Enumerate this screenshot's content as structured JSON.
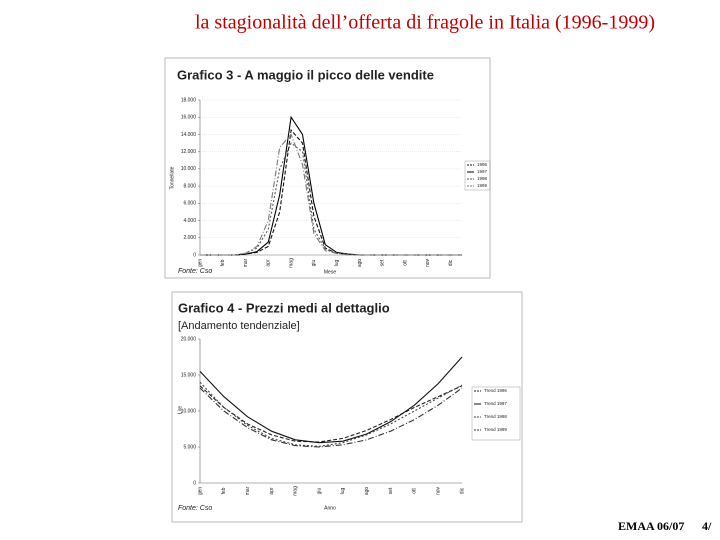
{
  "slide": {
    "title": "la stagionalità dell’offerta di fragole in Italia (1996-1999)",
    "footer": "EMAA 06/07",
    "page": "4/"
  },
  "chart_data": [
    {
      "type": "line",
      "title": "Grafico 3 - A maggio il picco delle vendite",
      "source": "Fonte: Cso",
      "x_label": "Mese",
      "y_label": "Tonnellate",
      "categories": [
        "gen",
        null,
        "feb",
        null,
        "mar",
        null,
        "apr",
        null,
        "mag",
        null,
        "giu",
        null,
        "lug",
        null,
        "ago",
        null,
        "set",
        null,
        "ott",
        null,
        "nov",
        null,
        "dic",
        null
      ],
      "ylim": [
        0,
        18000
      ],
      "yticks": [
        0,
        {
          "value": 2000,
          "label": "2.000"
        },
        {
          "value": 4000,
          "label": "4.000"
        },
        {
          "value": 6000,
          "label": "6.000"
        },
        {
          "value": 8000,
          "label": "8.000"
        },
        {
          "value": 10000,
          "label": "10.000"
        },
        {
          "value": 12000,
          "label": "12.000"
        },
        {
          "value": 14000,
          "label": "14.000"
        },
        {
          "value": 16000,
          "label": "16.000"
        },
        {
          "value": 18000,
          "label": "18.000"
        }
      ],
      "grid": true,
      "series": [
        {
          "name": "1996",
          "color": "#111111",
          "values": [
            0,
            0,
            0,
            0,
            100,
            300,
            1000,
            5000,
            14500,
            13000,
            4500,
            800,
            200,
            100,
            0,
            0,
            0,
            0,
            0,
            0,
            0,
            0,
            0,
            0
          ]
        },
        {
          "name": "1997",
          "color": "#000000",
          "values": [
            0,
            0,
            0,
            0,
            100,
            400,
            1500,
            7000,
            16000,
            14000,
            6000,
            1200,
            300,
            100,
            0,
            0,
            0,
            0,
            0,
            0,
            0,
            0,
            0,
            0
          ]
        },
        {
          "name": "1998",
          "color": "#555555",
          "values": [
            0,
            0,
            0,
            0,
            200,
            800,
            3000,
            10000,
            13000,
            12000,
            3000,
            700,
            200,
            100,
            0,
            0,
            0,
            0,
            0,
            0,
            0,
            0,
            0,
            0
          ]
        },
        {
          "name": "1999",
          "color": "#777777",
          "values": [
            0,
            0,
            0,
            0,
            200,
            1000,
            4000,
            12500,
            14000,
            10500,
            2500,
            500,
            200,
            0,
            0,
            0,
            0,
            0,
            0,
            0,
            0,
            0,
            0,
            0
          ]
        }
      ]
    },
    {
      "type": "line",
      "title": "Grafico 4 - Prezzi medi al dettaglio",
      "subtitle": "[Andamento tendenziale]",
      "source": "Fonte: Cso",
      "x_label": "Anno",
      "y_label": "Lire",
      "categories": [
        "gen",
        "feb",
        "mar",
        "apr",
        "mag",
        "giu",
        "lug",
        "ago",
        "set",
        "ott",
        "nov",
        "dic"
      ],
      "ylim": [
        0,
        20000
      ],
      "yticks": [
        0,
        {
          "value": 5000,
          "label": "5.000"
        },
        {
          "value": 10000,
          "label": "10.000"
        },
        {
          "value": 15000,
          "label": "15.000"
        },
        {
          "value": 20000,
          "label": "20.000"
        }
      ],
      "grid": false,
      "series": [
        {
          "name": "Trend 1996",
          "color": "#222222",
          "values": [
            13500,
            10500,
            8200,
            6700,
            5800,
            5700,
            6200,
            7300,
            8800,
            10500,
            12000,
            13500
          ]
        },
        {
          "name": "Trend 1997",
          "color": "#111111",
          "values": [
            15500,
            12000,
            9200,
            7200,
            6000,
            5600,
            5800,
            6800,
            8500,
            10800,
            13800,
            17500
          ]
        },
        {
          "name": "Trend 1998",
          "color": "#444444",
          "values": [
            14000,
            10500,
            8000,
            6200,
            5300,
            5100,
            5600,
            6700,
            8200,
            10000,
            11800,
            13600
          ]
        },
        {
          "name": "Trend 1999",
          "color": "#333333",
          "values": [
            13200,
            10000,
            7700,
            6000,
            5200,
            5000,
            5300,
            6000,
            7200,
            8800,
            10800,
            13200
          ]
        }
      ]
    }
  ]
}
